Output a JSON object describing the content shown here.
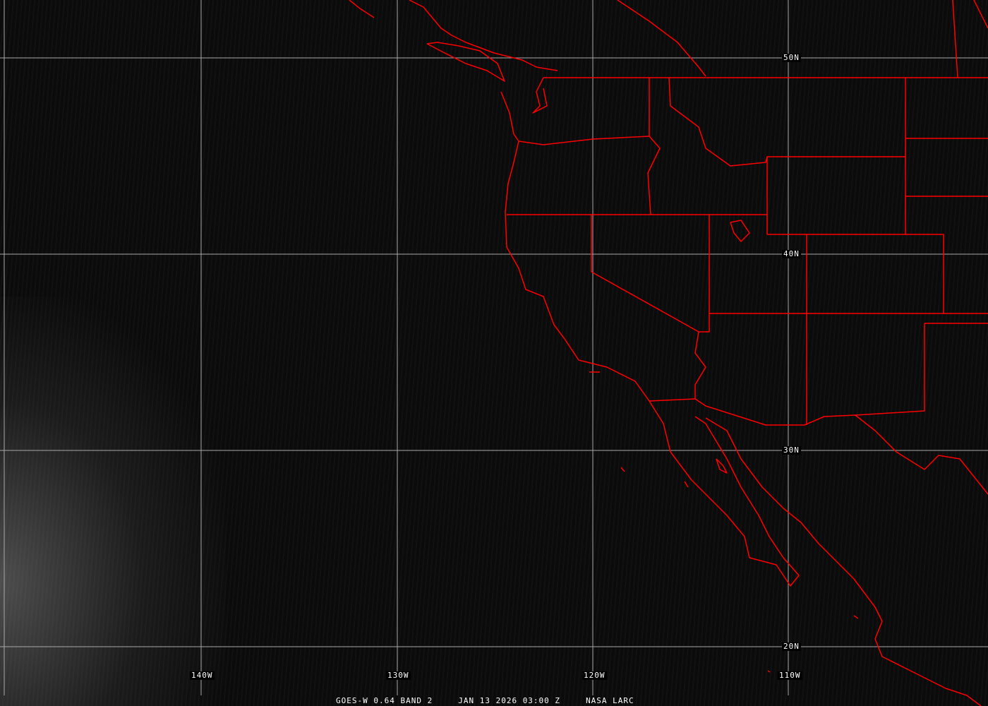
{
  "grid": {
    "lat_labels": [
      "50N",
      "40N",
      "30N",
      "20N"
    ],
    "lon_labels": [
      "140W",
      "130W",
      "120W",
      "110W"
    ]
  },
  "caption": {
    "product": "GOES-W 0.64 BAND 2",
    "datetime": "JAN 13 2026 03:00 Z",
    "source": "NASA LARC"
  },
  "colors": {
    "borders": "#ff0000",
    "grid": "#b0b0b0",
    "background": "#0b0b0b"
  }
}
